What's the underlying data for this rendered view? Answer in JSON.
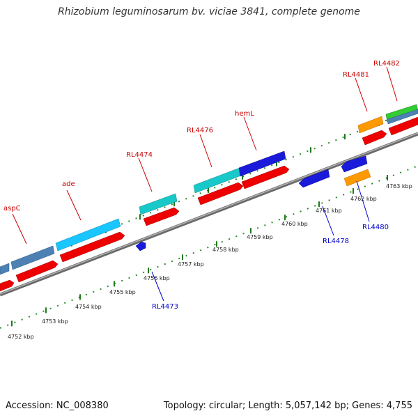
{
  "title": "Rhizobium leguminosarum bv. viciae 3841, complete genome",
  "footer": {
    "accession": "Accession: NC_008380",
    "summary": "Topology: circular; Length: 5,057,142 bp; Genes: 4,755"
  },
  "colors": {
    "forward_label": "#cc0000",
    "reverse_label": "#0000cc",
    "tick": "#1a7a1a",
    "backbone": "#8c8c8c",
    "cds": "#ff0000",
    "light_blue": "#1ac6ff",
    "steel_blue": "#4d80b3",
    "teal": "#19c8c8",
    "dark_blue": "#1a1adb",
    "orange": "#ff9900",
    "green": "#33cc33"
  },
  "axis": {
    "unit": "kbp",
    "ticks": [
      {
        "value": 4752,
        "label": "4752 kbp"
      },
      {
        "value": 4753,
        "label": "4753 kbp"
      },
      {
        "value": 4754,
        "label": "4754 kbp"
      },
      {
        "value": 4755,
        "label": "4755 kbp"
      },
      {
        "value": 4756,
        "label": "4756 kbp"
      },
      {
        "value": 4757,
        "label": "4757 kbp"
      },
      {
        "value": 4758,
        "label": "4758 kbp"
      },
      {
        "value": 4759,
        "label": "4759 kbp"
      },
      {
        "value": 4760,
        "label": "4760 kbp"
      },
      {
        "value": 4761,
        "label": "4761 kbp"
      },
      {
        "value": 4762,
        "label": "4762 kbp"
      },
      {
        "value": 4763,
        "label": "4763 kbp"
      }
    ]
  },
  "gene_labels": [
    {
      "name": "aspC",
      "strand": "forward"
    },
    {
      "name": "ade",
      "strand": "forward"
    },
    {
      "name": "RL4474",
      "strand": "forward"
    },
    {
      "name": "RL4476",
      "strand": "forward"
    },
    {
      "name": "hemL",
      "strand": "forward"
    },
    {
      "name": "RL4481",
      "strand": "forward"
    },
    {
      "name": "RL4482",
      "strand": "forward"
    },
    {
      "name": "RL4473",
      "strand": "reverse"
    },
    {
      "name": "RL4478",
      "strand": "reverse"
    },
    {
      "name": "RL4480",
      "strand": "reverse"
    }
  ]
}
